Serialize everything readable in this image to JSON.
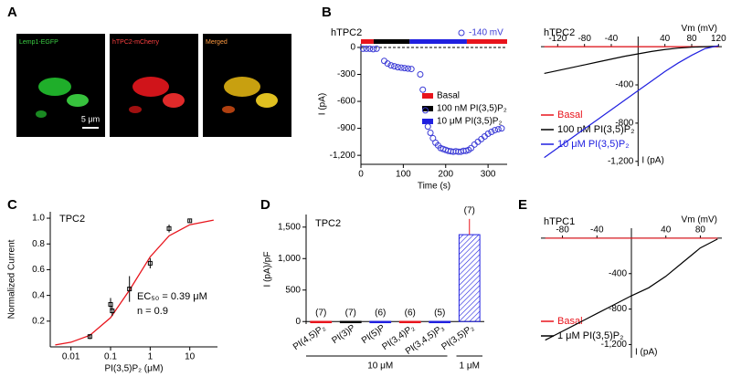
{
  "panel_labels": [
    "A",
    "B",
    "C",
    "D",
    "E"
  ],
  "images": {
    "captions": [
      "Lemp1-EGFP",
      "hTPC2-mCherry",
      "Merged"
    ],
    "scale_bar": "5 μm"
  },
  "chart_data": [
    {
      "type": "scatter",
      "title": "hTPC2",
      "x_label": "Time (s)",
      "y_label": "I (pA)",
      "x": [
        5,
        13,
        21,
        29,
        37,
        55,
        63,
        71,
        79,
        87,
        95,
        103,
        111,
        119,
        140,
        146,
        152,
        158,
        164,
        170,
        176,
        182,
        188,
        194,
        200,
        206,
        212,
        218,
        224,
        230,
        236,
        242,
        248,
        254,
        260,
        268,
        276,
        284,
        292,
        300,
        308,
        316,
        324,
        332
      ],
      "series": [
        {
          "name": "-140 mV",
          "color": "#3b3bd6",
          "values": [
            -15,
            -15,
            -15,
            -20,
            -15,
            -150,
            -180,
            -200,
            -210,
            -220,
            -225,
            -230,
            -235,
            -240,
            -300,
            -470,
            -700,
            -880,
            -950,
            -1010,
            -1060,
            -1090,
            -1120,
            -1130,
            -1140,
            -1150,
            -1155,
            -1160,
            -1155,
            -1160,
            -1160,
            -1150,
            -1150,
            -1140,
            -1120,
            -1080,
            -1050,
            -1020,
            -990,
            -960,
            -940,
            -920,
            -910,
            -900
          ]
        }
      ],
      "periods": [
        {
          "name": "Basal",
          "color": "#e8141c",
          "start": 0,
          "end": 30
        },
        {
          "name": "100 nM PI(3,5)P₂",
          "color": "#000000",
          "start": 30,
          "end": 115
        },
        {
          "name": "10 μM PI(3,5)P₂",
          "color": "#2020e0",
          "start": 115,
          "end": 250
        },
        {
          "color": "#e8141c",
          "start": 250,
          "end": 345
        }
      ],
      "xlim": [
        0,
        345
      ],
      "xticks": [
        0,
        100,
        200,
        300
      ],
      "ylim": [
        -1300,
        40
      ],
      "yticks": [
        0,
        -300,
        -600,
        -900,
        {
          "value": -1200,
          "label": "-1,200"
        }
      ]
    },
    {
      "type": "line",
      "title": "hTPC2",
      "x_label": "Vm (mV)",
      "y_label": "I (pA)",
      "x": [
        -140,
        -120,
        -100,
        -80,
        -60,
        -40,
        -20,
        0,
        20,
        40,
        60,
        80,
        100,
        120
      ],
      "series": [
        {
          "name": "Basal",
          "color": "#e8141c",
          "values": [
            0,
            0,
            0,
            0,
            0,
            0,
            0,
            0,
            0,
            0,
            0,
            0,
            0,
            0
          ]
        },
        {
          "name": "100 nM PI(3,5)P₂",
          "color": "#000000",
          "values": [
            -280,
            -250,
            -220,
            -190,
            -160,
            -130,
            -100,
            -75,
            -50,
            -30,
            -15,
            -5,
            0,
            5
          ]
        },
        {
          "name": "10 μM PI(3,5)P₂",
          "color": "#2020e0",
          "values": [
            -1160,
            -1060,
            -960,
            -860,
            -760,
            -660,
            -560,
            -460,
            -360,
            -260,
            -170,
            -90,
            -20,
            10
          ]
        }
      ],
      "xlim": [
        -145,
        125
      ],
      "xticks": [
        -120,
        -80,
        -40,
        40,
        80,
        120
      ],
      "ylim": [
        -1250,
        30
      ],
      "yticks": [
        -400,
        -800,
        {
          "value": -1200,
          "label": "-1,200"
        }
      ]
    },
    {
      "type": "scatter",
      "log_x": true,
      "title": "TPC2",
      "x_label": "PI(3,5)P₂ (μM)",
      "y_label": "Normalized Current",
      "x": [
        0.03,
        0.1,
        0.11,
        0.3,
        1,
        3,
        10
      ],
      "values": [
        0.08,
        0.33,
        0.28,
        0.45,
        0.65,
        0.92,
        0.98
      ],
      "errors": [
        0.02,
        0.05,
        0.04,
        0.1,
        0.04,
        0.03,
        0.01
      ],
      "color": "#000000",
      "fit": {
        "color": "#e8141c",
        "x": [
          0.004,
          0.01,
          0.03,
          0.1,
          0.3,
          1,
          3,
          10,
          40
        ],
        "values": [
          0.015,
          0.036,
          0.09,
          0.227,
          0.441,
          0.7,
          0.863,
          0.949,
          0.985
        ]
      },
      "annotations": [
        "EC₅₀ = 0.39 μM",
        "n = 0.9"
      ],
      "xlim": [
        0.003,
        50
      ],
      "xticks": [
        0.01,
        0.1,
        1,
        10
      ],
      "ylim": [
        0,
        1.05
      ],
      "yticks": [
        0.2,
        0.4,
        0.6,
        0.8,
        {
          "value": 1,
          "label": "1.0"
        }
      ]
    },
    {
      "type": "bar",
      "title": "TPC2",
      "y_label": "I (pA)/pF",
      "categories": [
        "PI(4,5)P₂",
        "PI(3)P",
        "PI(5)P",
        "PI(3,4)P₂",
        "PI(3,4,5)P₃",
        "PI(3,5)P₂"
      ],
      "values": [
        3,
        3,
        3,
        3,
        3,
        1380
      ],
      "errors": [
        2,
        2,
        2,
        2,
        2,
        250
      ],
      "n_labels": [
        "(7)",
        "(7)",
        "(6)",
        "(6)",
        "(5)",
        "(7)"
      ],
      "colors": [
        "#e8141c",
        "#000000",
        "#2020e0",
        "#e8141c",
        "#2020e0",
        "#2020e0"
      ],
      "groups": [
        "10 μM",
        "1 μM"
      ],
      "ylim": [
        -40,
        1700
      ],
      "yticks": [
        0,
        500,
        {
          "value": 1000,
          "label": "1,000"
        },
        {
          "value": 1500,
          "label": "1,500"
        }
      ]
    },
    {
      "type": "line",
      "title": "hTPC1",
      "x_label": "Vm (mV)",
      "y_label": "I (pA)",
      "x": [
        -100,
        -80,
        -60,
        -40,
        -20,
        0,
        20,
        40,
        60,
        80,
        100
      ],
      "series": [
        {
          "name": "Basal",
          "color": "#e8141c",
          "values": [
            0,
            0,
            0,
            0,
            0,
            0,
            0,
            0,
            0,
            0,
            0
          ]
        },
        {
          "name": "1 μM PI(3,5)P₂",
          "color": "#000000",
          "values": [
            -1150,
            -1050,
            -950,
            -850,
            -750,
            -650,
            -560,
            -430,
            -270,
            -110,
            -10
          ]
        }
      ],
      "xlim": [
        -105,
        105
      ],
      "xticks": [
        -80,
        -40,
        40,
        80
      ],
      "ylim": [
        -1350,
        30
      ],
      "yticks": [
        -400,
        -800,
        {
          "value": -1200,
          "label": "-1,200"
        }
      ]
    }
  ]
}
